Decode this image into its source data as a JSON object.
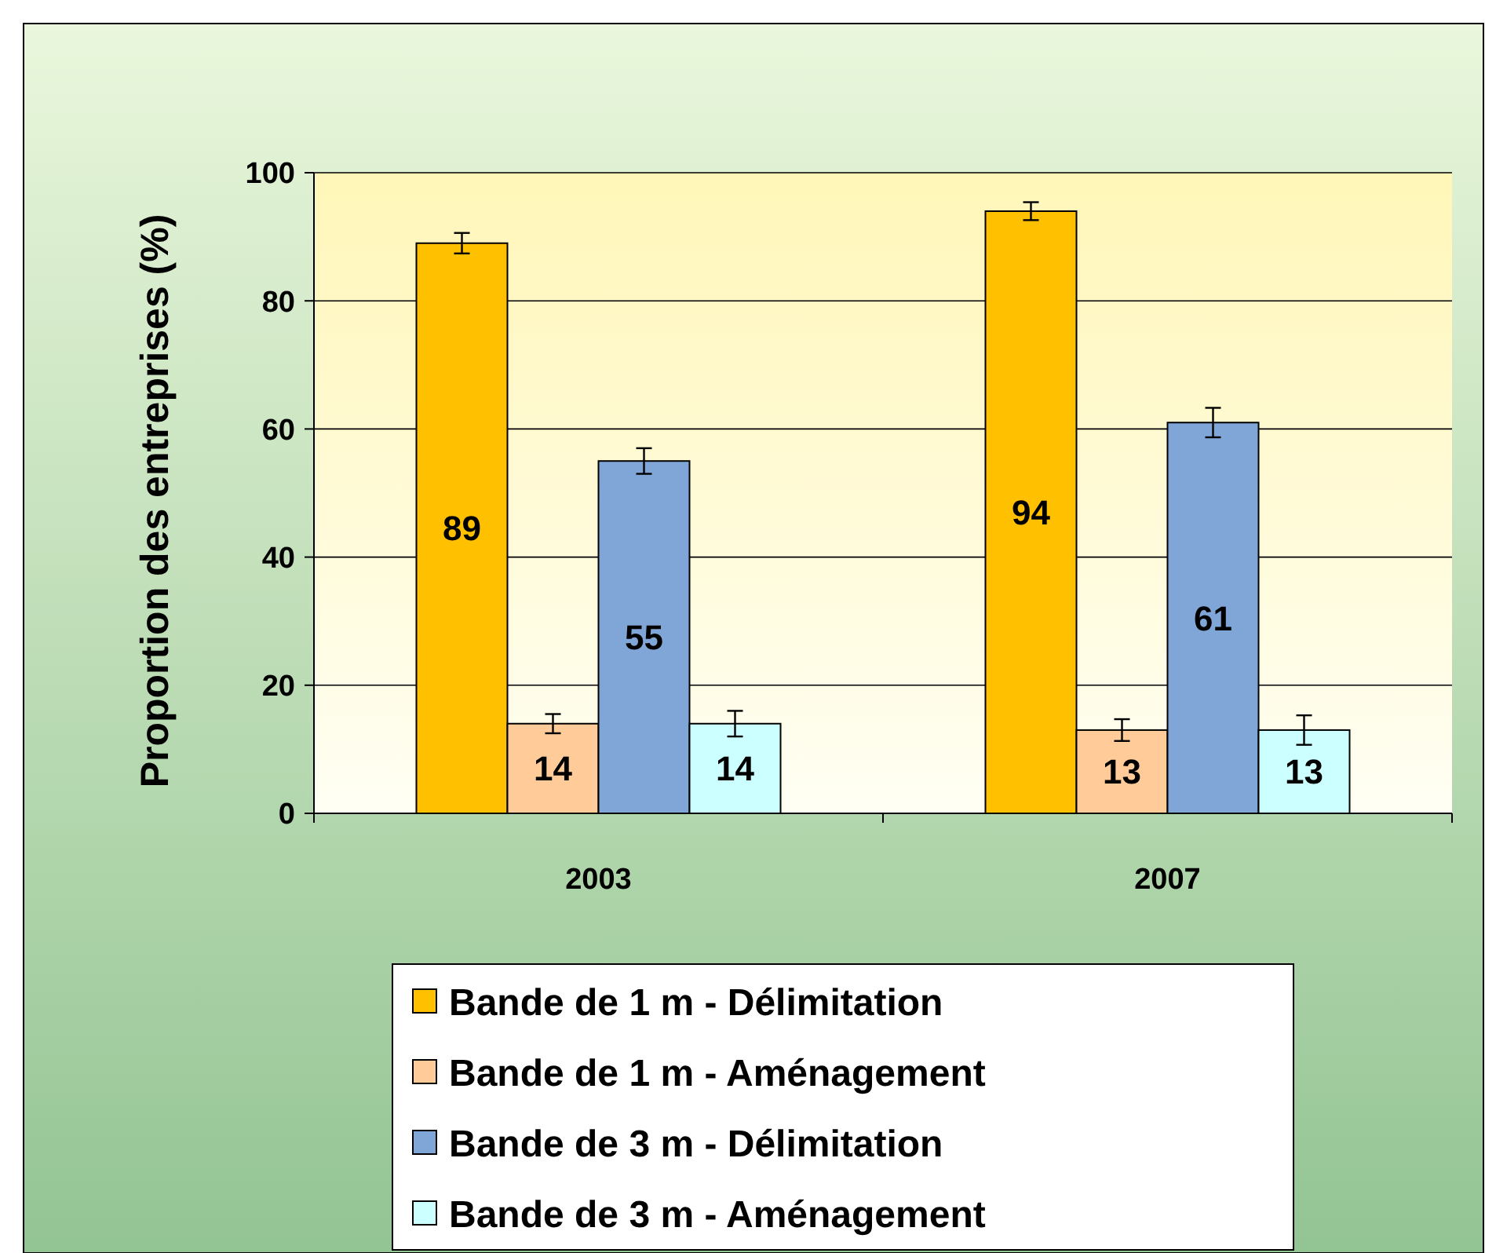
{
  "chart_data": {
    "type": "bar",
    "ylabel": "Proportion des entreprises (%)",
    "categories": [
      "2003",
      "2007"
    ],
    "series": [
      {
        "name": "Bande de 1 m - Délimitation",
        "color": "#ffc000",
        "values": [
          89,
          94
        ],
        "errors": [
          1.6,
          1.4
        ]
      },
      {
        "name": "Bande de 1 m - Aménagement",
        "color": "#ffcc99",
        "values": [
          14,
          13
        ],
        "errors": [
          1.5,
          1.7
        ]
      },
      {
        "name": "Bande de 3 m - Délimitation",
        "color": "#7fa6d6",
        "values": [
          55,
          61
        ],
        "errors": [
          2,
          2.3
        ]
      },
      {
        "name": "Bande de 3 m - Aménagement",
        "color": "#ccffff",
        "values": [
          14,
          13
        ],
        "errors": [
          2,
          2.3
        ]
      }
    ],
    "ylim": [
      0,
      100
    ],
    "yticks": [
      0,
      20,
      40,
      60,
      80,
      100
    ],
    "grid": "y",
    "data_labels": true,
    "legend": "bottom"
  }
}
